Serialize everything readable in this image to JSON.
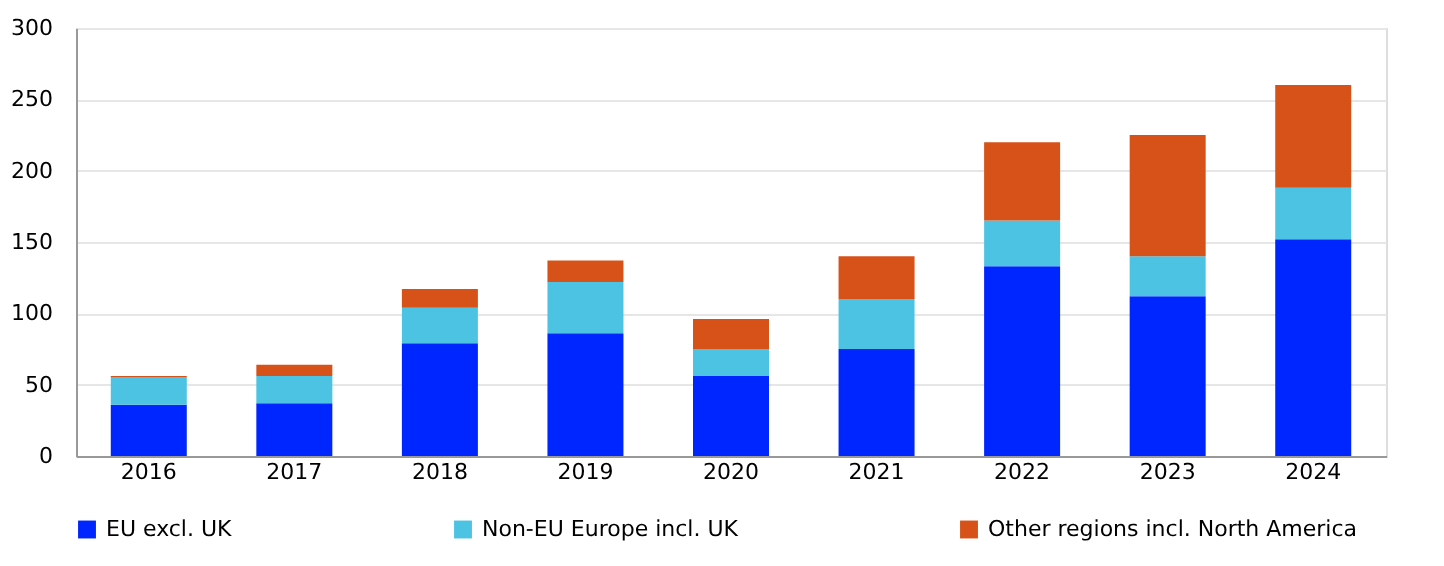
{
  "chart_data": {
    "type": "bar",
    "stacked": true,
    "categories": [
      "2016",
      "2017",
      "2018",
      "2019",
      "2020",
      "2021",
      "2022",
      "2023",
      "2024"
    ],
    "series": [
      {
        "name": "EU excl. UK",
        "color": "#0026ff",
        "values": [
          36,
          37,
          79,
          86,
          56,
          75,
          133,
          112,
          152
        ]
      },
      {
        "name": "Non-EU Europe incl. UK",
        "color": "#4dc3e3",
        "values": [
          19,
          19,
          25,
          36,
          19,
          35,
          32,
          28,
          36
        ]
      },
      {
        "name": "Other regions incl. North America",
        "color": "#d75218",
        "values": [
          1,
          8,
          13,
          15,
          21,
          30,
          55,
          85,
          72
        ]
      }
    ],
    "ylim": [
      0,
      300
    ],
    "yticks": [
      0,
      50,
      100,
      150,
      200,
      250,
      300
    ],
    "grid": "y",
    "legend": "bottom"
  }
}
